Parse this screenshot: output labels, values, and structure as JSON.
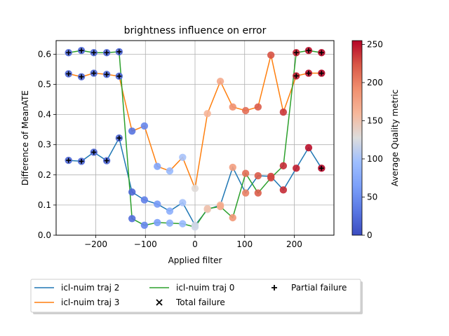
{
  "chart_data": {
    "type": "line",
    "title": "brightness influence on error",
    "xlabel": "Applied filter",
    "ylabel": "Difference of MeanATE",
    "xlim": [
      -280,
      280
    ],
    "ylim": [
      0,
      0.645
    ],
    "xticks": [
      -200,
      -100,
      0,
      100,
      200
    ],
    "yticks": [
      0.0,
      0.1,
      0.2,
      0.3,
      0.4,
      0.5,
      0.6
    ],
    "xtick_labels": [
      "−200",
      "−100",
      "0",
      "100",
      "200"
    ],
    "ytick_labels": [
      "0.0",
      "0.1",
      "0.2",
      "0.3",
      "0.4",
      "0.5",
      "0.6"
    ],
    "grid": true,
    "x": [
      -255,
      -229,
      -204,
      -178,
      -153,
      -127,
      -102,
      -76,
      -51,
      -25,
      0,
      25,
      51,
      76,
      102,
      127,
      153,
      178,
      204,
      229,
      255
    ],
    "series": [
      {
        "name": "icl-nuim traj 2",
        "color": "#1f77b4",
        "values": [
          0.248,
          0.245,
          0.275,
          0.247,
          0.322,
          0.143,
          0.117,
          0.103,
          0.08,
          0.108,
          0.033,
          0.085,
          0.1,
          0.225,
          0.14,
          0.197,
          0.195,
          0.15,
          0.222,
          0.29,
          0.222
        ],
        "quality": [
          20,
          20,
          20,
          20,
          20,
          20,
          40,
          60,
          80,
          100,
          120,
          140,
          160,
          180,
          200,
          220,
          230,
          240,
          245,
          250,
          255
        ],
        "markers": [
          "partial",
          "partial",
          "partial",
          "partial",
          "partial",
          "none",
          "none",
          "none",
          "none",
          "none",
          "none",
          "none",
          "none",
          "none",
          "none",
          "none",
          "none",
          "none",
          "none",
          "none",
          "partial"
        ]
      },
      {
        "name": "icl-nuim traj 3",
        "color": "#ff7f0e",
        "values": [
          0.535,
          0.525,
          0.537,
          0.533,
          0.527,
          0.345,
          0.362,
          0.228,
          0.213,
          0.258,
          0.155,
          0.403,
          0.51,
          0.425,
          0.413,
          0.425,
          0.597,
          0.408,
          0.528,
          0.537,
          0.537
        ],
        "quality": [
          20,
          20,
          20,
          20,
          20,
          30,
          45,
          70,
          90,
          100,
          130,
          160,
          170,
          190,
          210,
          220,
          225,
          235,
          245,
          250,
          255
        ],
        "markers": [
          "partial",
          "partial",
          "partial",
          "partial",
          "partial",
          "none",
          "none",
          "none",
          "none",
          "none",
          "none",
          "none",
          "none",
          "none",
          "none",
          "none",
          "none",
          "none",
          "partial",
          "partial",
          "partial"
        ]
      },
      {
        "name": "icl-nuim traj 0",
        "color": "#2ca02c",
        "values": [
          0.605,
          0.612,
          0.605,
          0.605,
          0.608,
          0.055,
          0.033,
          0.042,
          0.04,
          0.038,
          0.027,
          0.088,
          0.095,
          0.058,
          0.205,
          0.14,
          0.19,
          0.23,
          0.605,
          0.612,
          0.605
        ],
        "quality": [
          20,
          20,
          20,
          20,
          20,
          25,
          45,
          65,
          80,
          90,
          120,
          150,
          170,
          185,
          210,
          220,
          230,
          240,
          245,
          250,
          255
        ],
        "markers": [
          "partial",
          "partial",
          "partial",
          "partial",
          "partial",
          "none",
          "none",
          "none",
          "none",
          "none",
          "none",
          "none",
          "none",
          "none",
          "none",
          "none",
          "none",
          "none",
          "partial",
          "partial",
          "partial"
        ]
      }
    ],
    "colorbar": {
      "label": "Average Quality metric",
      "range": [
        0,
        255
      ],
      "ticks": [
        0,
        50,
        100,
        150,
        200,
        250
      ],
      "tick_labels": [
        "0",
        "50",
        "100",
        "150",
        "200",
        "250"
      ],
      "colormap": "coolwarm"
    },
    "legend": {
      "placement": "below-plot",
      "entries": [
        {
          "label": "icl-nuim traj 2",
          "kind": "line",
          "color": "#1f77b4"
        },
        {
          "label": "icl-nuim traj 3",
          "kind": "line",
          "color": "#ff7f0e"
        },
        {
          "label": "icl-nuim traj 0",
          "kind": "line",
          "color": "#2ca02c"
        },
        {
          "label": "Total failure",
          "kind": "x-marker",
          "color": "#000000"
        },
        {
          "label": "Partial failure",
          "kind": "plus-marker",
          "color": "#000000"
        }
      ]
    }
  }
}
